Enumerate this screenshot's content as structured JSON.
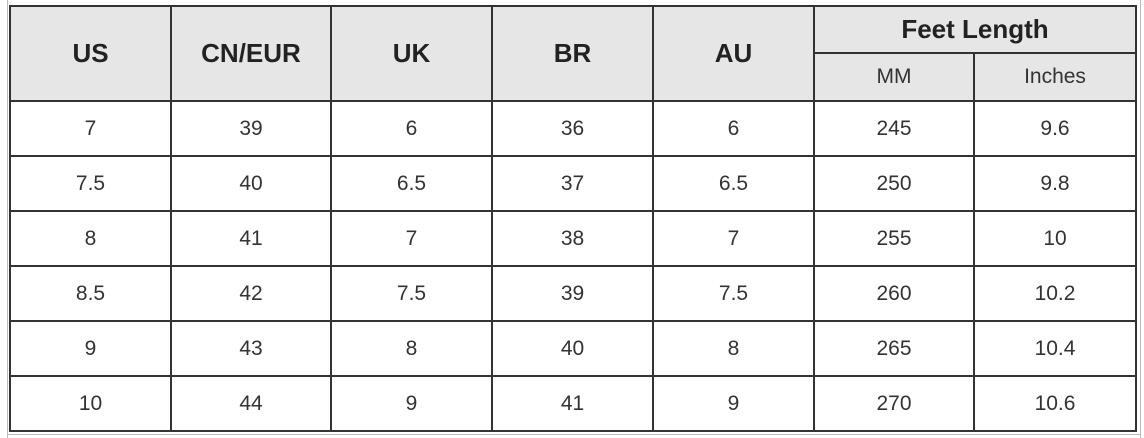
{
  "table": {
    "headers": [
      "US",
      "CN/EUR",
      "UK",
      "BR",
      "AU"
    ],
    "group_header": "Feet Length",
    "sub_headers": [
      "MM",
      "Inches"
    ],
    "rows": [
      [
        "7",
        "39",
        "6",
        "36",
        "6",
        "245",
        "9.6"
      ],
      [
        "7.5",
        "40",
        "6.5",
        "37",
        "6.5",
        "250",
        "9.8"
      ],
      [
        "8",
        "41",
        "7",
        "38",
        "7",
        "255",
        "10"
      ],
      [
        "8.5",
        "42",
        "7.5",
        "39",
        "7.5",
        "260",
        "10.2"
      ],
      [
        "9",
        "43",
        "8",
        "40",
        "8",
        "265",
        "10.4"
      ],
      [
        "10",
        "44",
        "9",
        "41",
        "9",
        "270",
        "10.6"
      ]
    ],
    "colors": {
      "header_bg": "#e6e6e6",
      "border": "#333333"
    }
  }
}
